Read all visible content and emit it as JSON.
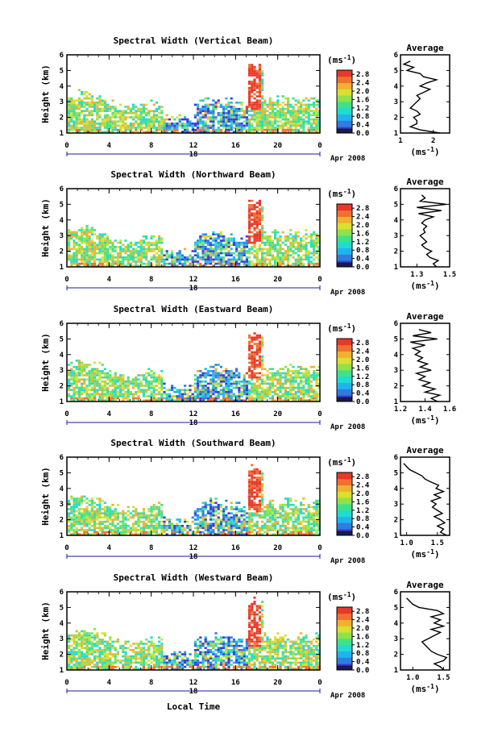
{
  "figure": {
    "common_xlabel": "Local Time",
    "date_label": "Apr 2008",
    "date_day": "18",
    "unit_label": "(ms",
    "unit_exponent": "-1",
    "unit_close": ")",
    "average_title": "Average",
    "colormap": [
      "#1a1a4a",
      "#3a3ad8",
      "#2f7de0",
      "#1fb4ee",
      "#1fdcd0",
      "#3ee28a",
      "#8ee24a",
      "#d8e030",
      "#f0b030",
      "#f07030",
      "#e83828"
    ]
  },
  "chart_data": [
    {
      "type": "heatmap",
      "title": "Spectral Width (Vertical Beam)",
      "ylabel": "Height (km)",
      "xlim": [
        0,
        24
      ],
      "ylim": [
        1,
        6
      ],
      "xticks": [
        "0",
        "4",
        "8",
        "12",
        "16",
        "20",
        "0"
      ],
      "yticks": [
        "1",
        "2",
        "3",
        "4",
        "5",
        "6"
      ],
      "colorbar": {
        "ticks": [
          "0.0",
          "0.4",
          "0.8",
          "1.2",
          "1.6",
          "2.0",
          "2.4",
          "2.8"
        ],
        "range": [
          0,
          3.0
        ]
      },
      "average": {
        "type": "line",
        "xlim": [
          1,
          2.5
        ],
        "xticks": [
          "1",
          "2"
        ],
        "height": [
          1.0,
          1.2,
          1.4,
          1.6,
          1.8,
          2.0,
          2.2,
          2.4,
          2.6,
          2.8,
          3.0,
          3.2,
          3.4,
          3.6,
          3.8,
          4.0,
          4.2,
          4.4,
          4.6,
          4.8,
          5.0,
          5.2,
          5.4,
          5.6
        ],
        "width": [
          2.2,
          1.6,
          1.3,
          1.5,
          1.5,
          1.4,
          1.6,
          1.5,
          1.3,
          1.4,
          1.5,
          1.6,
          1.5,
          1.7,
          1.9,
          1.6,
          1.8,
          2.1,
          1.7,
          1.6,
          1.2,
          1.4,
          1.1,
          1.3
        ]
      }
    },
    {
      "type": "heatmap",
      "title": "Spectral Width (Northward Beam)",
      "ylabel": "Height (km)",
      "xlim": [
        0,
        24
      ],
      "ylim": [
        1,
        6
      ],
      "xticks": [
        "0",
        "4",
        "8",
        "12",
        "16",
        "20",
        "0"
      ],
      "yticks": [
        "1",
        "2",
        "3",
        "4",
        "5",
        "6"
      ],
      "colorbar": {
        "ticks": [
          "0.0",
          "0.4",
          "0.8",
          "1.2",
          "1.6",
          "2.0",
          "2.4",
          "2.8"
        ],
        "range": [
          0,
          3.0
        ]
      },
      "average": {
        "type": "line",
        "xlim": [
          1.2,
          1.5
        ],
        "xticks": [
          "1.3",
          "1.5"
        ],
        "height": [
          1.0,
          1.2,
          1.4,
          1.6,
          1.8,
          2.0,
          2.2,
          2.4,
          2.6,
          2.8,
          3.0,
          3.2,
          3.4,
          3.6,
          3.8,
          4.0,
          4.2,
          4.4,
          4.6,
          4.8,
          5.0,
          5.2,
          5.4,
          5.6
        ],
        "width": [
          1.42,
          1.4,
          1.43,
          1.38,
          1.36,
          1.39,
          1.35,
          1.33,
          1.36,
          1.34,
          1.32,
          1.35,
          1.34,
          1.36,
          1.33,
          1.35,
          1.4,
          1.31,
          1.45,
          1.3,
          1.48,
          1.32,
          1.35,
          1.33
        ]
      }
    },
    {
      "type": "heatmap",
      "title": "Spectral Width (Eastward Beam)",
      "ylabel": "Height (km)",
      "xlim": [
        0,
        24
      ],
      "ylim": [
        1,
        6
      ],
      "xticks": [
        "0",
        "4",
        "8",
        "12",
        "16",
        "20",
        "0"
      ],
      "yticks": [
        "1",
        "2",
        "3",
        "4",
        "5",
        "6"
      ],
      "colorbar": {
        "ticks": [
          "0.0",
          "0.4",
          "0.8",
          "1.2",
          "1.6",
          "2.0",
          "2.4",
          "2.8"
        ],
        "range": [
          0,
          3.0
        ]
      },
      "average": {
        "type": "line",
        "xlim": [
          1.2,
          1.6
        ],
        "xticks": [
          "1.2",
          "1.4",
          "1.6"
        ],
        "height": [
          1.0,
          1.2,
          1.4,
          1.6,
          1.8,
          2.0,
          2.2,
          2.4,
          2.6,
          2.8,
          3.0,
          3.2,
          3.4,
          3.6,
          3.8,
          4.0,
          4.2,
          4.4,
          4.6,
          4.8,
          5.0,
          5.2,
          5.4,
          5.6
        ],
        "width": [
          1.5,
          1.45,
          1.52,
          1.4,
          1.48,
          1.38,
          1.44,
          1.35,
          1.4,
          1.33,
          1.45,
          1.36,
          1.42,
          1.34,
          1.38,
          1.32,
          1.36,
          1.3,
          1.4,
          1.28,
          1.5,
          1.3,
          1.45,
          1.35
        ]
      }
    },
    {
      "type": "heatmap",
      "title": "Spectral Width (Southward Beam)",
      "ylabel": "Height (km)",
      "xlim": [
        0,
        24
      ],
      "ylim": [
        1,
        6
      ],
      "xticks": [
        "0",
        "4",
        "8",
        "12",
        "16",
        "20",
        "0"
      ],
      "yticks": [
        "1",
        "2",
        "3",
        "4",
        "5",
        "6"
      ],
      "colorbar": {
        "ticks": [
          "0.0",
          "0.4",
          "0.8",
          "1.2",
          "1.6",
          "2.0",
          "2.4",
          "2.8"
        ],
        "range": [
          0,
          3.0
        ]
      },
      "average": {
        "type": "line",
        "xlim": [
          0.9,
          1.7
        ],
        "xticks": [
          "1.0",
          "1.5"
        ],
        "height": [
          1.0,
          1.2,
          1.4,
          1.6,
          1.8,
          2.0,
          2.2,
          2.4,
          2.6,
          2.8,
          3.0,
          3.2,
          3.4,
          3.6,
          3.8,
          4.0,
          4.2,
          4.4,
          4.6,
          4.8,
          5.0,
          5.2,
          5.4,
          5.6
        ],
        "width": [
          1.65,
          1.55,
          1.6,
          1.5,
          1.62,
          1.55,
          1.45,
          1.58,
          1.5,
          1.42,
          1.48,
          1.4,
          1.55,
          1.45,
          1.6,
          1.48,
          1.52,
          1.4,
          1.3,
          1.25,
          1.15,
          1.05,
          1.0,
          0.95
        ]
      }
    },
    {
      "type": "heatmap",
      "title": "Spectral Width (Westward Beam)",
      "ylabel": "Height (km)",
      "xlim": [
        0,
        24
      ],
      "ylim": [
        1,
        6
      ],
      "xticks": [
        "0",
        "4",
        "8",
        "12",
        "16",
        "20",
        "0"
      ],
      "yticks": [
        "1",
        "2",
        "3",
        "4",
        "5",
        "6"
      ],
      "colorbar": {
        "ticks": [
          "0.0",
          "0.4",
          "0.8",
          "1.2",
          "1.6",
          "2.0",
          "2.4",
          "2.8"
        ],
        "range": [
          0,
          3.0
        ]
      },
      "average": {
        "type": "line",
        "xlim": [
          0.8,
          1.6
        ],
        "xticks": [
          "1.0",
          "1.5"
        ],
        "height": [
          1.0,
          1.2,
          1.4,
          1.6,
          1.8,
          2.0,
          2.2,
          2.4,
          2.6,
          2.8,
          3.0,
          3.2,
          3.4,
          3.6,
          3.8,
          4.0,
          4.2,
          4.4,
          4.6,
          4.8,
          5.0,
          5.2,
          5.4,
          5.6
        ],
        "width": [
          1.5,
          1.45,
          1.35,
          1.5,
          1.55,
          1.4,
          1.3,
          1.25,
          1.2,
          1.15,
          1.25,
          1.35,
          1.45,
          1.3,
          1.5,
          1.35,
          1.45,
          1.3,
          1.5,
          1.4,
          1.1,
          1.0,
          0.95,
          0.9
        ]
      }
    }
  ]
}
